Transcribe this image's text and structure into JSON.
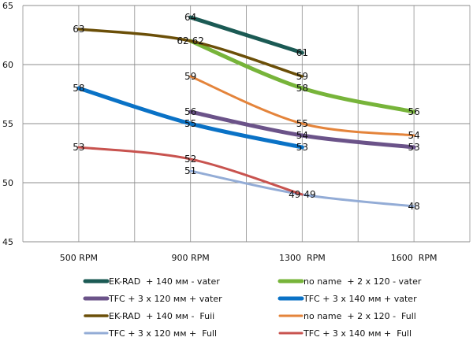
{
  "chart_data": {
    "type": "line",
    "title": "",
    "xlabel": "",
    "ylabel": "",
    "categories": [
      "500 RPM",
      "900 RPM",
      "1300  RPM",
      "1600  RPM"
    ],
    "ylim": [
      45,
      65
    ],
    "yticks": [
      45,
      50,
      55,
      60,
      65
    ],
    "grid": true,
    "smooth": true,
    "legend_position": "bottom",
    "series": [
      {
        "name": "EK-RAD  + 140 мм - vater",
        "color": "#1b5a54",
        "width": 5,
        "values": [
          null,
          64,
          61,
          null
        ]
      },
      {
        "name": "no name  + 2 x 120 - vater",
        "color": "#77b43a",
        "width": 5,
        "values": [
          null,
          62,
          58,
          56
        ]
      },
      {
        "name": "TFC + 3 x 120 мм + vater",
        "color": "#6b5389",
        "width": 5,
        "values": [
          null,
          56,
          54,
          53
        ]
      },
      {
        "name": "TFC + 3 x 140 мм + vater",
        "color": "#0a72c6",
        "width": 5,
        "values": [
          58,
          55,
          53,
          null
        ]
      },
      {
        "name": "EK-RAD  + 140 мм -  Fuii",
        "color": "#6b4f08",
        "width": 3.5,
        "values": [
          63,
          62,
          59,
          null
        ]
      },
      {
        "name": "no name  + 2 x 120 -  Full",
        "color": "#e4843b",
        "width": 3,
        "values": [
          null,
          59,
          55,
          54
        ]
      },
      {
        "name": "TFC + 3 x 120 мм +  Full",
        "color": "#93acd6",
        "width": 3,
        "values": [
          null,
          51,
          49,
          48
        ]
      },
      {
        "name": "TFC + 3 x 140 мм +  Full",
        "color": "#c8534f",
        "width": 3,
        "values": [
          53,
          52,
          49,
          null
        ]
      }
    ]
  }
}
